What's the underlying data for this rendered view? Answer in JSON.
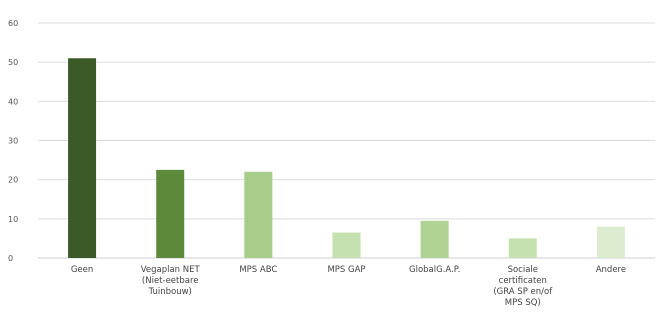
{
  "chart_data": {
    "type": "bar",
    "categories": [
      [
        "Geen"
      ],
      [
        "Vegaplan NET",
        "(Niet-eetbare",
        "Tuinbouw)"
      ],
      [
        "MPS ABC"
      ],
      [
        "MPS GAP"
      ],
      [
        "GlobalG.A.P."
      ],
      [
        "Sociale",
        "certificaten",
        "(GRA SP en/of",
        "MPS SQ)"
      ],
      [
        "Andere"
      ]
    ],
    "values": [
      51,
      22.5,
      22,
      6.5,
      9.5,
      5,
      8
    ],
    "colors": [
      "#3b5a27",
      "#5c8a3a",
      "#a8cc8a",
      "#c6e1b0",
      "#b0d394",
      "#c6e1b0",
      "#ddeccf"
    ],
    "yticks": [
      "0",
      "10",
      "20",
      "30",
      "40",
      "50",
      "60"
    ],
    "ylim": [
      0,
      60
    ],
    "grid": true
  }
}
